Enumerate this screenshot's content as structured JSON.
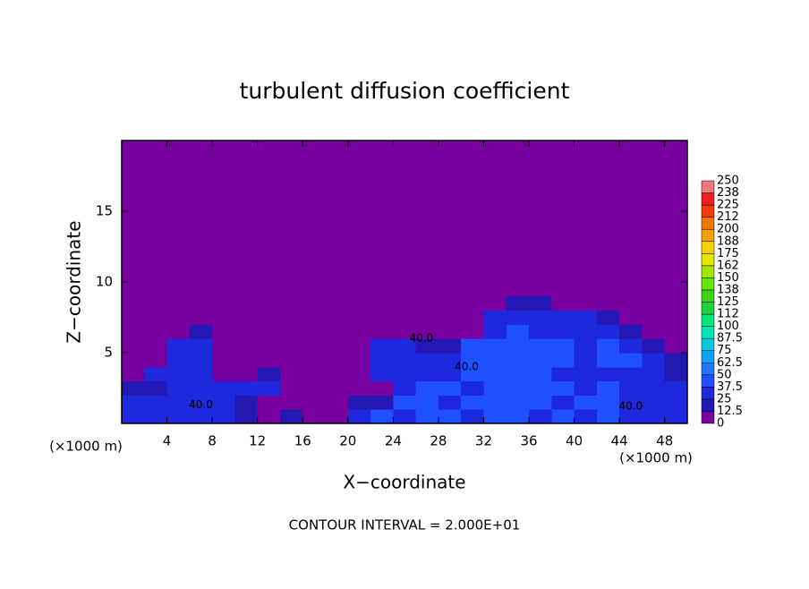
{
  "chart_data": {
    "type": "heatmap",
    "title": "turbulent diffusion coefficient",
    "xlabel": "X−coordinate",
    "ylabel": "Z−coordinate",
    "x_unit": "(×1000 m)",
    "y_unit": "(×1000 m)",
    "footnote": "CONTOUR INTERVAL = 2.000E+01",
    "xlim": [
      0,
      50
    ],
    "ylim": [
      0,
      20
    ],
    "xticks": [
      4,
      8,
      12,
      16,
      20,
      24,
      28,
      32,
      36,
      40,
      44,
      48
    ],
    "yticks": [
      5,
      10,
      15
    ],
    "xbins": [
      0,
      2,
      4,
      6,
      8,
      10,
      12,
      14,
      16,
      18,
      20,
      22,
      24,
      26,
      28,
      30,
      32,
      34,
      36,
      38,
      40,
      42,
      44,
      46,
      48,
      50
    ],
    "ybins": [
      0,
      1,
      2,
      3,
      4,
      5,
      6,
      7,
      8,
      9
    ],
    "z": [
      [
        30,
        32,
        28,
        30,
        25,
        15,
        12,
        14,
        10,
        12,
        35,
        38,
        36,
        40,
        38,
        35,
        42,
        38,
        36,
        40,
        35,
        38,
        36,
        34,
        32
      ],
      [
        32,
        30,
        30,
        28,
        25,
        22,
        12,
        10,
        12,
        10,
        20,
        22,
        38,
        40,
        36,
        38,
        42,
        40,
        38,
        36,
        40,
        38,
        35,
        36,
        34
      ],
      [
        20,
        22,
        30,
        32,
        30,
        30,
        28,
        8,
        6,
        8,
        10,
        12,
        36,
        38,
        40,
        36,
        38,
        42,
        40,
        38,
        36,
        38,
        35,
        36,
        30
      ],
      [
        5,
        25,
        28,
        30,
        8,
        10,
        20,
        5,
        4,
        5,
        6,
        30,
        32,
        35,
        36,
        38,
        40,
        42,
        38,
        36,
        35,
        34,
        35,
        30,
        22
      ],
      [
        4,
        5,
        35,
        36,
        6,
        5,
        8,
        4,
        3,
        4,
        5,
        35,
        32,
        30,
        30,
        40,
        42,
        44,
        40,
        38,
        36,
        38,
        40,
        28,
        20
      ],
      [
        3,
        4,
        30,
        32,
        5,
        4,
        4,
        3,
        3,
        3,
        4,
        30,
        28,
        15,
        14,
        38,
        40,
        42,
        38,
        40,
        36,
        38,
        35,
        22,
        10
      ],
      [
        3,
        3,
        5,
        20,
        4,
        3,
        3,
        3,
        3,
        3,
        3,
        8,
        6,
        5,
        5,
        10,
        35,
        38,
        36,
        34,
        32,
        30,
        20,
        8,
        5
      ],
      [
        3,
        3,
        3,
        4,
        3,
        3,
        3,
        3,
        3,
        3,
        3,
        3,
        3,
        3,
        3,
        4,
        30,
        32,
        34,
        30,
        28,
        20,
        6,
        4,
        3
      ],
      [
        3,
        3,
        3,
        3,
        3,
        3,
        3,
        3,
        3,
        3,
        3,
        3,
        3,
        3,
        3,
        3,
        8,
        20,
        22,
        10,
        5,
        3,
        3,
        3,
        3
      ]
    ],
    "levels": [
      0,
      12.5,
      25,
      37.5,
      50,
      62.5,
      75,
      87.5,
      100,
      112,
      125,
      138,
      150,
      162,
      175,
      188,
      200,
      212,
      225,
      238,
      250
    ],
    "colors": [
      "#7800a0",
      "#2418b4",
      "#1e28dc",
      "#1e50ff",
      "#1e78ff",
      "#10a0f0",
      "#00c8e6",
      "#00e6b4",
      "#00e678",
      "#1ed23c",
      "#3cd21e",
      "#64e600",
      "#a0e600",
      "#e6e600",
      "#f0d200",
      "#f0a000",
      "#f07800",
      "#f03c00",
      "#f01e1e",
      "#f07878"
    ],
    "annotations": [
      {
        "text": "40.0",
        "x": 7,
        "y": 1.3
      },
      {
        "text": "40.0",
        "x": 26.5,
        "y": 6
      },
      {
        "text": "40.0",
        "x": 30.5,
        "y": 4
      },
      {
        "text": "40.0",
        "x": 45,
        "y": 1.2
      }
    ]
  }
}
